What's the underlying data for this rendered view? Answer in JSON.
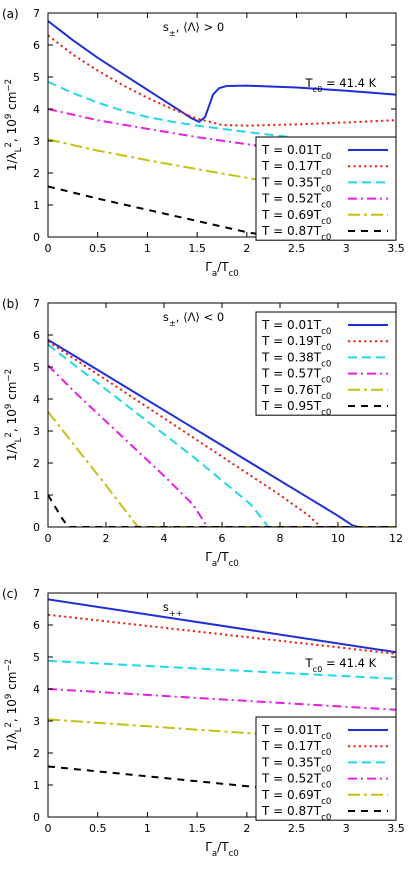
{
  "chart_data": [
    {
      "type": "line",
      "panel_label": "(a)",
      "annotation": "s±, ⟨Λ⟩ > 0",
      "tc0_label": "Tc0 = 41.4 K",
      "xlabel": "Γa/Tc0",
      "ylabel": "1/λL², 10⁹ cm⁻²",
      "xlim": [
        0,
        3.5
      ],
      "ylim": [
        0,
        7
      ],
      "xticks": [
        "0",
        "0.5",
        "1",
        "1.5",
        "2",
        "2.5",
        "3",
        "3.5"
      ],
      "yticks": [
        "0",
        "1",
        "2",
        "3",
        "4",
        "5",
        "6",
        "7"
      ],
      "grid": false,
      "legend_position": "bottom-right",
      "series": [
        {
          "name": "T = 0.01Tc0",
          "color": "#1f2ed6",
          "dash": "solid",
          "x": [
            0,
            0.25,
            0.5,
            0.75,
            1.0,
            1.25,
            1.45,
            1.52,
            1.58,
            1.62,
            1.66,
            1.72,
            1.8,
            2.0,
            2.5,
            3.0,
            3.5
          ],
          "y": [
            6.75,
            6.15,
            5.6,
            5.1,
            4.6,
            4.1,
            3.7,
            3.6,
            3.75,
            4.1,
            4.45,
            4.65,
            4.72,
            4.73,
            4.67,
            4.57,
            4.45
          ]
        },
        {
          "name": "T = 0.17Tc0",
          "color": "#e8231b",
          "dash": "dot",
          "x": [
            0,
            0.25,
            0.5,
            0.75,
            1.0,
            1.25,
            1.5,
            1.75,
            2.0,
            2.5,
            3.0,
            3.5
          ],
          "y": [
            6.3,
            5.7,
            5.2,
            4.75,
            4.35,
            4.0,
            3.7,
            3.5,
            3.48,
            3.52,
            3.58,
            3.65
          ]
        },
        {
          "name": "T = 0.35Tc0",
          "color": "#22d7e8",
          "dash": "dash",
          "x": [
            0,
            0.25,
            0.5,
            0.75,
            1.0,
            1.25,
            1.5,
            1.75,
            2.0,
            2.5,
            3.0,
            3.5
          ],
          "y": [
            4.85,
            4.5,
            4.2,
            3.95,
            3.75,
            3.6,
            3.48,
            3.38,
            3.28,
            3.1,
            2.98,
            2.87
          ]
        },
        {
          "name": "T = 0.52Tc0",
          "color": "#e81ee0",
          "dash": "dashdot",
          "x": [
            0,
            0.5,
            1.0,
            1.5,
            2.0,
            2.5,
            3.0,
            3.5
          ],
          "y": [
            4.0,
            3.65,
            3.38,
            3.12,
            2.9,
            2.7,
            2.5,
            2.3
          ]
        },
        {
          "name": "T = 0.69Tc0",
          "color": "#c8c010",
          "dash": "dashdotdot",
          "x": [
            0,
            0.5,
            1.0,
            1.5,
            2.0,
            2.5,
            3.0,
            3.5
          ],
          "y": [
            3.05,
            2.7,
            2.4,
            2.12,
            1.85,
            1.58,
            1.32,
            1.05
          ]
        },
        {
          "name": "T = 0.87Tc0",
          "color": "#000000",
          "dash": "longdash",
          "x": [
            0,
            0.5,
            1.0,
            1.5,
            2.0,
            2.3,
            3.5
          ],
          "y": [
            1.58,
            1.2,
            0.85,
            0.5,
            0.15,
            0.0,
            0.0
          ]
        }
      ]
    },
    {
      "type": "line",
      "panel_label": "(b)",
      "annotation": "s±, ⟨Λ⟩ < 0",
      "tc0_label": "Tc0 = 39.0 K",
      "xlabel": "Γa/Tc0",
      "ylabel": "1/λL², 10⁹ cm⁻²",
      "xlim": [
        0,
        12
      ],
      "ylim": [
        0,
        7
      ],
      "xticks": [
        "0",
        "2",
        "4",
        "6",
        "8",
        "10",
        "12"
      ],
      "yticks": [
        "0",
        "1",
        "2",
        "3",
        "4",
        "5",
        "6",
        "7"
      ],
      "grid": false,
      "legend_position": "top-right",
      "series": [
        {
          "name": "T = 0.01Tc0",
          "color": "#1f2ed6",
          "dash": "solid",
          "x": [
            0,
            1,
            2,
            3,
            4,
            5,
            6,
            7,
            8,
            9,
            10,
            10.5,
            10.7,
            12
          ],
          "y": [
            5.85,
            5.3,
            4.75,
            4.2,
            3.65,
            3.1,
            2.55,
            2.0,
            1.45,
            0.9,
            0.35,
            0.05,
            0.0,
            0.0
          ]
        },
        {
          "name": "T = 0.19Tc0",
          "color": "#e8231b",
          "dash": "dot",
          "x": [
            0,
            1,
            2,
            3,
            4,
            5,
            6,
            7,
            8,
            9,
            9.4,
            12
          ],
          "y": [
            5.8,
            5.2,
            4.6,
            4.0,
            3.4,
            2.8,
            2.2,
            1.6,
            1.0,
            0.35,
            0.0,
            0.0
          ]
        },
        {
          "name": "T = 0.38Tc0",
          "color": "#22d7e8",
          "dash": "dash",
          "x": [
            0,
            1,
            2,
            3,
            4,
            5,
            6,
            7,
            7.6,
            12
          ],
          "y": [
            5.7,
            5.0,
            4.3,
            3.6,
            2.9,
            2.2,
            1.45,
            0.7,
            0.0,
            0.0
          ]
        },
        {
          "name": "T = 0.57Tc0",
          "color": "#e81ee0",
          "dash": "dashdot",
          "x": [
            0,
            1,
            2,
            3,
            4,
            5,
            5.5,
            12
          ],
          "y": [
            5.05,
            4.15,
            3.3,
            2.45,
            1.6,
            0.7,
            0.0,
            0.0
          ]
        },
        {
          "name": "T = 0.76Tc0",
          "color": "#c8c010",
          "dash": "dashdotdot",
          "x": [
            0,
            1,
            2,
            3,
            3.1,
            12
          ],
          "y": [
            3.6,
            2.45,
            1.3,
            0.12,
            0.0,
            0.0
          ]
        },
        {
          "name": "T = 0.95Tc0",
          "color": "#000000",
          "dash": "longdash",
          "x": [
            0,
            0.5,
            0.7,
            12
          ],
          "y": [
            1.0,
            0.25,
            0.0,
            0.0
          ]
        }
      ]
    },
    {
      "type": "line",
      "panel_label": "(c)",
      "annotation": "s++",
      "tc0_label": "Tc0 = 41.4 K",
      "xlabel": "Γa/Tc0",
      "ylabel": "1/λL², 10⁹ cm⁻²",
      "xlim": [
        0,
        3.5
      ],
      "ylim": [
        0,
        7
      ],
      "xticks": [
        "0",
        "0.5",
        "1",
        "1.5",
        "2",
        "2.5",
        "3",
        "3.5"
      ],
      "yticks": [
        "0",
        "1",
        "2",
        "3",
        "4",
        "5",
        "6",
        "7"
      ],
      "grid": false,
      "legend_position": "bottom-right",
      "series": [
        {
          "name": "T = 0.01Tc0",
          "color": "#1f2ed6",
          "dash": "solid",
          "x": [
            0,
            3.5
          ],
          "y": [
            6.8,
            5.15
          ]
        },
        {
          "name": "T = 0.17Tc0",
          "color": "#e8231b",
          "dash": "dot",
          "x": [
            0,
            3.5
          ],
          "y": [
            6.32,
            5.1
          ]
        },
        {
          "name": "T = 0.35Tc0",
          "color": "#22d7e8",
          "dash": "dash",
          "x": [
            0,
            3.5
          ],
          "y": [
            4.88,
            4.32
          ]
        },
        {
          "name": "T = 0.52Tc0",
          "color": "#e81ee0",
          "dash": "dashdot",
          "x": [
            0,
            3.5
          ],
          "y": [
            4.0,
            3.35
          ]
        },
        {
          "name": "T = 0.69Tc0",
          "color": "#c8c010",
          "dash": "dashdotdot",
          "x": [
            0,
            3.5
          ],
          "y": [
            3.05,
            2.3
          ]
        },
        {
          "name": "T = 0.87Tc0",
          "color": "#000000",
          "dash": "longdash",
          "x": [
            0,
            3.5
          ],
          "y": [
            1.58,
            0.5
          ]
        }
      ]
    }
  ]
}
